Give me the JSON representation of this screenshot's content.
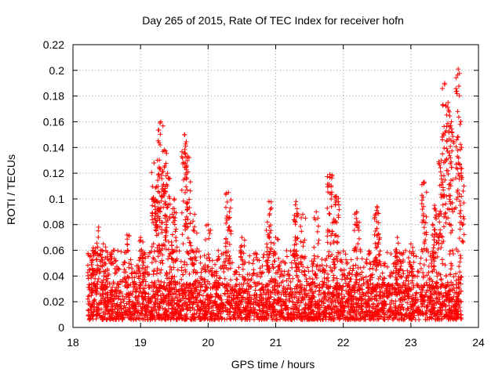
{
  "chart_data": {
    "type": "scatter",
    "title": "Day 265 of 2015, Rate Of TEC Index for receiver hofn",
    "xlabel": "GPS time / hours",
    "ylabel": "ROTI / TECUs",
    "xlim": [
      18,
      24
    ],
    "ylim": [
      0,
      0.22
    ],
    "xticks": [
      "18",
      "19",
      "20",
      "21",
      "22",
      "23",
      "24"
    ],
    "yticks": [
      "0",
      "0.02",
      "0.04",
      "0.06",
      "0.08",
      "0.1",
      "0.12",
      "0.14",
      "0.16",
      "0.18",
      "0.2",
      "0.22"
    ],
    "grid": true,
    "marker": "+",
    "color": "#ff0000",
    "x_range_of_data": [
      18.22,
      23.75
    ],
    "series": [
      {
        "name": "ROTI",
        "representative_points": [
          {
            "x": 18.25,
            "y": 0.055
          },
          {
            "x": 18.3,
            "y": 0.062
          },
          {
            "x": 18.38,
            "y": 0.078
          },
          {
            "x": 18.45,
            "y": 0.065
          },
          {
            "x": 18.6,
            "y": 0.06
          },
          {
            "x": 18.8,
            "y": 0.072
          },
          {
            "x": 19.0,
            "y": 0.07
          },
          {
            "x": 19.2,
            "y": 0.128
          },
          {
            "x": 19.25,
            "y": 0.13
          },
          {
            "x": 19.3,
            "y": 0.16
          },
          {
            "x": 19.35,
            "y": 0.138
          },
          {
            "x": 19.4,
            "y": 0.12
          },
          {
            "x": 19.5,
            "y": 0.1
          },
          {
            "x": 19.65,
            "y": 0.15
          },
          {
            "x": 19.7,
            "y": 0.133
          },
          {
            "x": 19.8,
            "y": 0.088
          },
          {
            "x": 20.0,
            "y": 0.08
          },
          {
            "x": 20.3,
            "y": 0.105
          },
          {
            "x": 20.5,
            "y": 0.07
          },
          {
            "x": 20.9,
            "y": 0.098
          },
          {
            "x": 21.0,
            "y": 0.07
          },
          {
            "x": 21.3,
            "y": 0.098
          },
          {
            "x": 21.4,
            "y": 0.088
          },
          {
            "x": 21.6,
            "y": 0.09
          },
          {
            "x": 21.8,
            "y": 0.119
          },
          {
            "x": 21.9,
            "y": 0.102
          },
          {
            "x": 22.2,
            "y": 0.09
          },
          {
            "x": 22.5,
            "y": 0.094
          },
          {
            "x": 22.8,
            "y": 0.07
          },
          {
            "x": 23.0,
            "y": 0.065
          },
          {
            "x": 23.2,
            "y": 0.113
          },
          {
            "x": 23.35,
            "y": 0.095
          },
          {
            "x": 23.45,
            "y": 0.13
          },
          {
            "x": 23.5,
            "y": 0.19
          },
          {
            "x": 23.55,
            "y": 0.175
          },
          {
            "x": 23.6,
            "y": 0.16
          },
          {
            "x": 23.7,
            "y": 0.201
          },
          {
            "x": 23.75,
            "y": 0.14
          }
        ]
      }
    ]
  }
}
